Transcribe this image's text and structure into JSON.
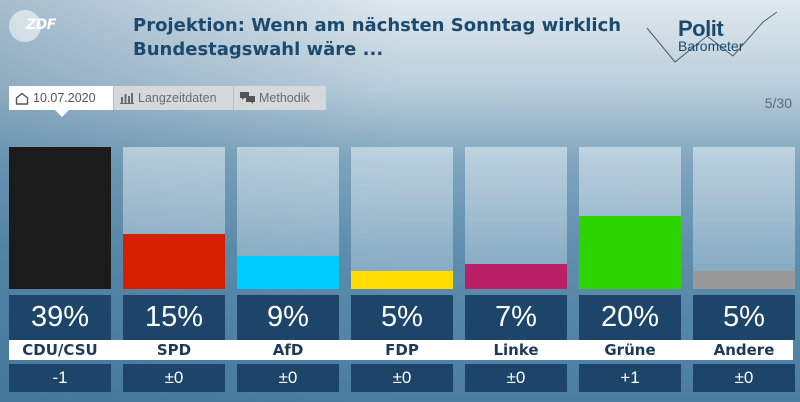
{
  "header": {
    "logo_text": "ZDF",
    "title_line1": "Projektion: Wenn am nächsten Sonntag wirklich",
    "title_line2": "Bundestagswahl wäre ...",
    "brand_top": "Polit",
    "brand_bottom": "Barometer"
  },
  "tabs": [
    {
      "label": "10.07.2020",
      "icon": "home-icon",
      "active": true
    },
    {
      "label": "Langzeitdaten",
      "icon": "bar-chart-icon",
      "active": false
    },
    {
      "label": "Methodik",
      "icon": "speech-bubbles-icon",
      "active": false
    }
  ],
  "pager": "5/30",
  "colors": {
    "panel": "#1d4469",
    "title": "#1c4a6e"
  },
  "chart_data": {
    "type": "bar",
    "title": "Projektion: Wenn am nächsten Sonntag wirklich Bundestagswahl wäre ...",
    "xlabel": "",
    "ylabel": "",
    "ylim": [
      0,
      39
    ],
    "categories": [
      "CDU/CSU",
      "SPD",
      "AfD",
      "FDP",
      "Linke",
      "Grüne",
      "Andere"
    ],
    "values": [
      39,
      15,
      9,
      5,
      7,
      20,
      5
    ],
    "value_labels": [
      "39%",
      "15%",
      "9%",
      "5%",
      "7%",
      "20%",
      "5%"
    ],
    "changes": [
      "-1",
      "±0",
      "±0",
      "±0",
      "±0",
      "+1",
      "±0"
    ],
    "bar_colors": [
      "#1b1b1b",
      "#d42000",
      "#00ccff",
      "#ffdd00",
      "#bb1f66",
      "#2ed400",
      "#999999"
    ],
    "grid": false,
    "legend": "none"
  }
}
